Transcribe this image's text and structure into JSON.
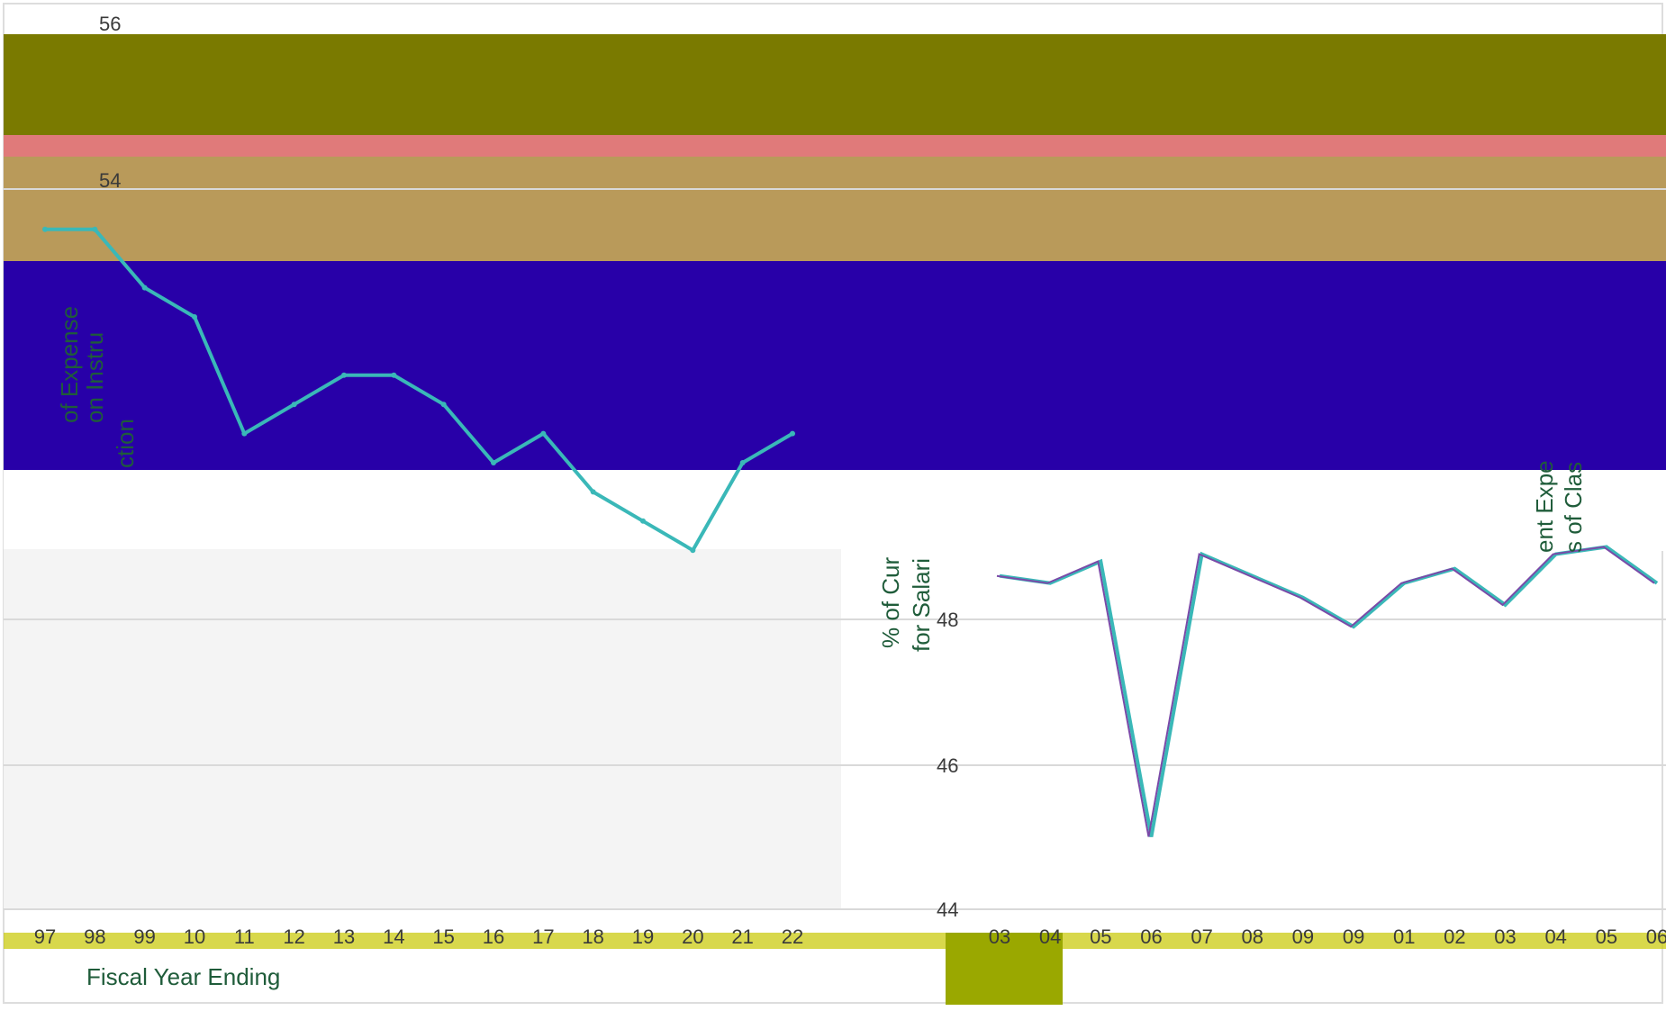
{
  "colors": {
    "frame": "#dddddd",
    "olive": "#7a7a00",
    "salmon": "#e07a7a",
    "tan": "#b99a5a",
    "indigo": "#2800a8",
    "teal": "#3ab8b8",
    "purple": "#7a4aa8",
    "green_axis_text": "#1f5c3a",
    "grid": "#d9d9d9",
    "lime": "#c8c800"
  },
  "chart_data": [
    {
      "type": "line",
      "title": "",
      "xlabel": "Fiscal Year Ending",
      "ylabel": "% of Expense on Instruction",
      "y_ticks": [
        "56",
        "54"
      ],
      "x": [
        "97",
        "98",
        "99",
        "10",
        "11",
        "12",
        "13",
        "14",
        "15",
        "16",
        "17",
        "18",
        "19",
        "20",
        "21",
        "22"
      ],
      "series": [
        {
          "values": [
            55.3,
            55.3,
            55.1,
            55.0,
            54.6,
            54.7,
            54.8,
            54.8,
            54.7,
            54.5,
            54.6,
            54.4,
            54.3,
            54.2,
            54.5,
            54.6
          ]
        }
      ]
    },
    {
      "type": "line",
      "title": "",
      "xlabel": "",
      "ylabel": "% of Current Expense for Salaries of Classroom Teachers",
      "y_ticks": [
        "48",
        "46",
        "44"
      ],
      "x": [
        "03",
        "04",
        "05",
        "06",
        "07",
        "08",
        "09",
        "09",
        "01",
        "02",
        "03",
        "04",
        "05",
        "06"
      ],
      "series": [
        {
          "values": [
            48.6,
            48.5,
            48.8,
            45.0,
            48.9,
            48.6,
            48.3,
            47.9,
            48.5,
            48.7,
            48.2,
            48.9,
            49.0,
            48.5
          ]
        }
      ]
    }
  ],
  "labels": {
    "x_title": "Fiscal Year Ending",
    "left_y_fragments": [
      "of Expense",
      "on Instru",
      "ction"
    ],
    "right_y_fragments": [
      "% of Cur",
      "for Salari"
    ],
    "edge_fragments": [
      "ent Expe",
      "s of Clas"
    ]
  }
}
